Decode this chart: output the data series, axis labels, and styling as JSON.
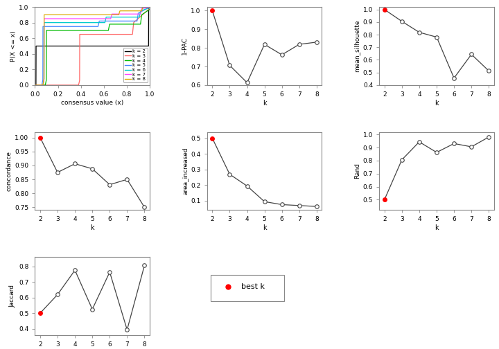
{
  "k_values": [
    2,
    3,
    4,
    5,
    6,
    7,
    8
  ],
  "one_pac": [
    1.0,
    0.706,
    0.613,
    0.819,
    0.763,
    0.819,
    0.831
  ],
  "mean_silhouette": [
    1.0,
    0.906,
    0.819,
    0.781,
    0.456,
    0.644,
    0.513
  ],
  "concordance_vals": [
    1.0,
    0.875,
    0.906,
    0.888,
    0.831,
    0.85,
    0.75
  ],
  "area_increased": [
    0.5,
    0.269,
    0.194,
    0.094,
    0.075,
    0.069,
    0.063
  ],
  "rand": [
    0.5,
    0.806,
    0.944,
    0.863,
    0.931,
    0.906,
    0.981
  ],
  "jaccard": [
    0.5,
    0.619,
    0.775,
    0.525,
    0.763,
    0.394,
    0.806
  ],
  "ecdf_colors": [
    "#000000",
    "#FF6666",
    "#00BB00",
    "#4488FF",
    "#00CCCC",
    "#FF44FF",
    "#DDAA00"
  ],
  "ecdf_k_labels": [
    "k = 2",
    "k = 3",
    "k = 4",
    "k = 5",
    "k = 6",
    "k = 7",
    "k = 8"
  ],
  "bg_color": "#FFFFFF",
  "point_color": "#FF0000",
  "open_color": "#FFFFFF",
  "line_color": "#444444",
  "spine_color": "#888888"
}
